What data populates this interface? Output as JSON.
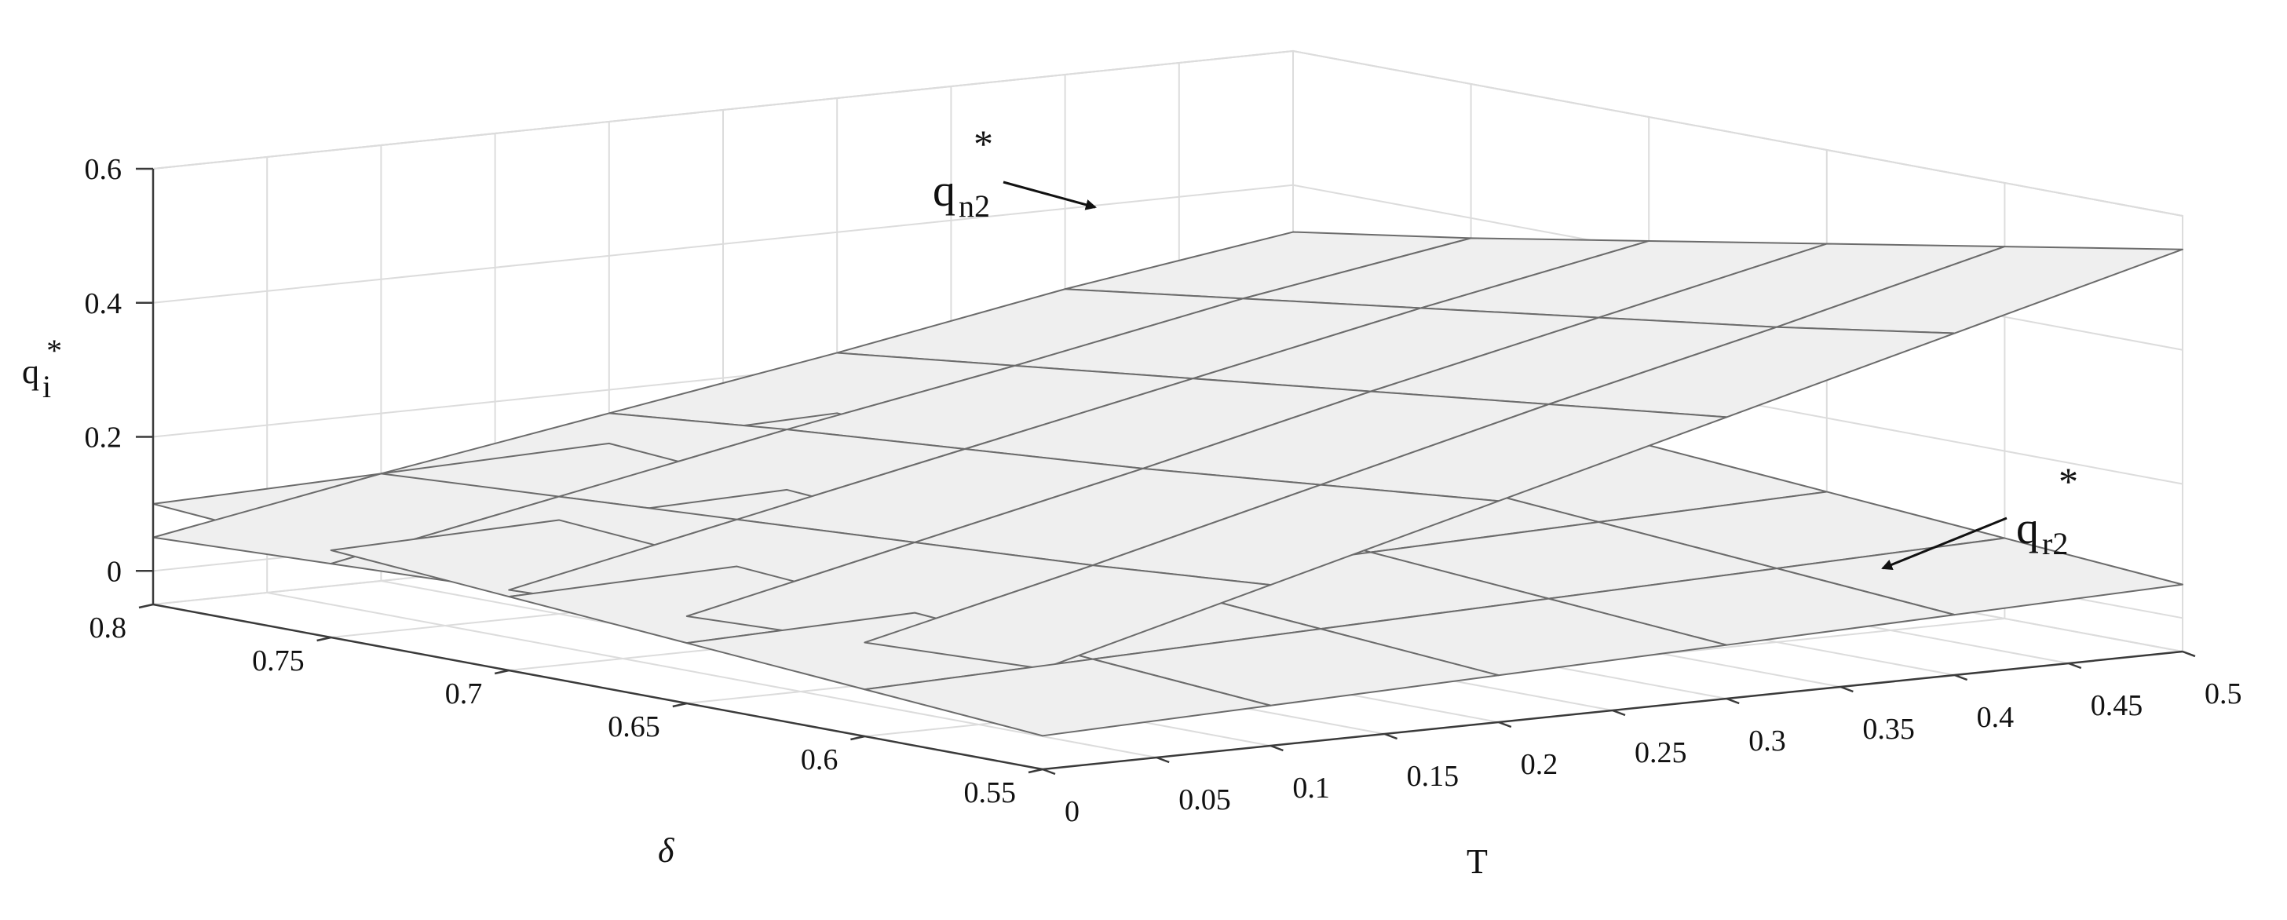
{
  "chart_data": {
    "type": "surface",
    "xlabel": "T",
    "ylabel": "δ",
    "zlabel": {
      "base": "q",
      "sub": "i",
      "sup": "*"
    },
    "xlim": [
      0,
      0.5
    ],
    "ylim": [
      0.55,
      0.8
    ],
    "zlim": [
      -0.05,
      0.6
    ],
    "x_ticks": [
      0,
      0.05,
      0.1,
      0.15,
      0.2,
      0.25,
      0.3,
      0.35,
      0.4,
      0.45,
      0.5
    ],
    "y_ticks": [
      0.55,
      0.6,
      0.65,
      0.7,
      0.75,
      0.8
    ],
    "z_ticks": [
      0,
      0.2,
      0.4,
      0.6
    ],
    "x_tick_labels": [
      "0",
      "0.05",
      "0.1",
      "0.15",
      "0.2",
      "0.25",
      "0.3",
      "0.35",
      "0.4",
      "0.45",
      "0.5"
    ],
    "y_tick_labels": [
      "0.55",
      "0.6",
      "0.65",
      "0.7",
      "0.75",
      "0.8"
    ],
    "z_tick_labels": [
      "0",
      "0.2",
      "0.4",
      "0.6"
    ],
    "grid": true,
    "x": [
      0,
      0.1,
      0.2,
      0.3,
      0.4,
      0.5
    ],
    "y": [
      0.55,
      0.6,
      0.65,
      0.7,
      0.75,
      0.8
    ],
    "surfaces": [
      {
        "name": "q_n2*",
        "z": [
          [
            0.1,
            0.19,
            0.28,
            0.37,
            0.46,
            0.55
          ],
          [
            0.09,
            0.17,
            0.255,
            0.34,
            0.42,
            0.505
          ],
          [
            0.08,
            0.155,
            0.23,
            0.31,
            0.385,
            0.46
          ],
          [
            0.07,
            0.14,
            0.21,
            0.28,
            0.35,
            0.415
          ],
          [
            0.06,
            0.125,
            0.19,
            0.25,
            0.315,
            0.37
          ],
          [
            0.05,
            0.11,
            0.165,
            0.22,
            0.28,
            0.33
          ]
        ]
      },
      {
        "name": "q_r2*",
        "z": [
          [
            0.0,
            0.01,
            0.02,
            0.03,
            0.04,
            0.05
          ],
          [
            0.02,
            0.03,
            0.04,
            0.05,
            0.06,
            0.07
          ],
          [
            0.04,
            0.05,
            0.06,
            0.07,
            0.08,
            0.09
          ],
          [
            0.06,
            0.07,
            0.08,
            0.09,
            0.1,
            0.11
          ],
          [
            0.08,
            0.09,
            0.1,
            0.11,
            0.12,
            0.13
          ],
          [
            0.1,
            0.11,
            0.12,
            0.13,
            0.14,
            0.15
          ]
        ]
      }
    ],
    "annotations": [
      {
        "base": "q",
        "sub": "n2",
        "sup": "*",
        "target_series": "q_n2*"
      },
      {
        "base": "q",
        "sub": "r2",
        "sup": "*",
        "target_series": "q_r2*"
      }
    ]
  },
  "colors": {
    "surface_fill": "#efefef",
    "surface_edge": "#6b6b6b",
    "grid": "#dcdcdc",
    "axis": "#3a3a3a",
    "text": "#111111"
  }
}
